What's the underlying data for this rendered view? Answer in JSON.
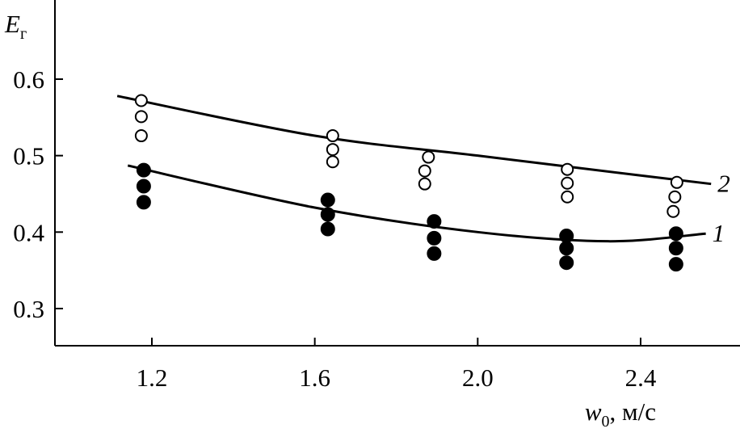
{
  "chart_data": {
    "type": "scatter",
    "ylabel": {
      "main": "E",
      "sub": "г"
    },
    "xlabel": {
      "main": "w",
      "sub": "0",
      "rest": ", м/с"
    },
    "xlim": [
      0.962,
      2.644
    ],
    "ylim": [
      0.2514,
      0.7035
    ],
    "xticks": [
      1.2,
      1.6,
      {
        "value": 2,
        "label": "2.0"
      },
      2.4
    ],
    "yticks": [
      0.6,
      0.5,
      0.4,
      0.3
    ],
    "color": "#000000",
    "series": [
      {
        "name": "1",
        "marker": "filled",
        "x": [
          1.18,
          1.18,
          1.18,
          1.632,
          1.632,
          1.632,
          1.893,
          1.893,
          1.893,
          2.218,
          2.218,
          2.218,
          2.487,
          2.487,
          2.487
        ],
        "values": [
          0.481,
          0.46,
          0.439,
          0.442,
          0.423,
          0.404,
          0.414,
          0.392,
          0.372,
          0.395,
          0.379,
          0.36,
          0.398,
          0.379,
          0.358
        ],
        "curve_x": [
          1.141,
          1.6,
          2.0,
          2.32,
          2.56
        ],
        "curve_values": [
          0.487,
          0.432,
          0.4,
          0.388,
          0.398
        ]
      },
      {
        "name": "2",
        "marker": "open",
        "x": [
          1.174,
          1.174,
          1.174,
          1.644,
          1.644,
          1.644,
          1.879,
          1.87,
          1.87,
          2.22,
          2.22,
          2.22,
          2.489,
          2.484,
          2.48
        ],
        "values": [
          0.572,
          0.551,
          0.526,
          0.526,
          0.508,
          0.492,
          0.498,
          0.48,
          0.463,
          0.482,
          0.464,
          0.446,
          0.465,
          0.446,
          0.427
        ],
        "curve_x": [
          1.115,
          1.6,
          2.0,
          2.4,
          2.573
        ],
        "curve_values": [
          0.578,
          0.526,
          0.5,
          0.474,
          0.463
        ]
      }
    ]
  }
}
